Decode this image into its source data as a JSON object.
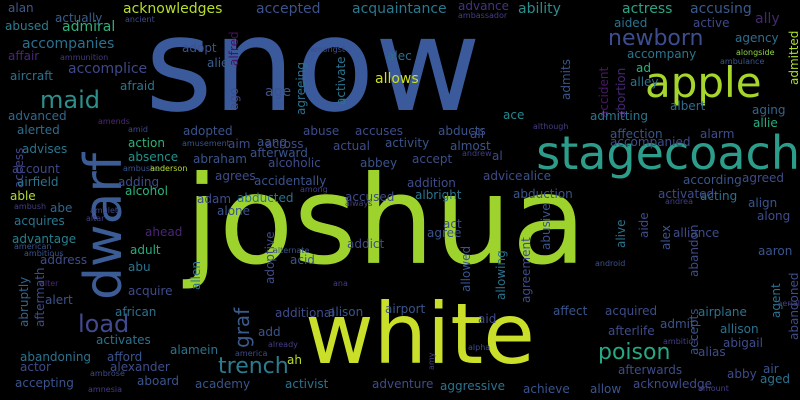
{
  "words": [
    {
      "text": "snow",
      "color": "#3a5a9c"
    },
    {
      "text": "joshua",
      "color": "#9ed32e"
    },
    {
      "text": "white",
      "color": "#c9df2a"
    },
    {
      "text": "stagecoach",
      "color": "#2c9c8b"
    },
    {
      "text": "apple",
      "color": "#a6d62b"
    },
    {
      "text": "dwarf",
      "color": "#3b5c95"
    },
    {
      "text": "maid",
      "color": "#2d8f8c"
    },
    {
      "text": "newborn",
      "color": "#3d4d8f"
    },
    {
      "text": "load",
      "color": "#414a8d"
    },
    {
      "text": "trench",
      "color": "#2c7b8e"
    },
    {
      "text": "poison",
      "color": "#26a884"
    },
    {
      "text": "graf",
      "color": "#3b5b8d"
    },
    {
      "text": "alan",
      "color": "#3f598b"
    },
    {
      "text": "abused",
      "color": "#2b7d8e"
    },
    {
      "text": "admiral",
      "color": "#30b07a"
    },
    {
      "text": "actually",
      "color": "#3a5e8d"
    },
    {
      "text": "acknowledges",
      "color": "#b7dd29"
    },
    {
      "text": "accepted",
      "color": "#3c528b"
    },
    {
      "text": "acquaintance",
      "color": "#2a798e"
    },
    {
      "text": "advance",
      "color": "#45337d"
    },
    {
      "text": "ability",
      "color": "#2d8c8d"
    },
    {
      "text": "actress",
      "color": "#2ca384"
    },
    {
      "text": "accusing",
      "color": "#3a5a8c"
    },
    {
      "text": "ally",
      "color": "#46296d"
    },
    {
      "text": "ancient",
      "color": "#3f4a89"
    },
    {
      "text": "accompanies",
      "color": "#2b718e"
    },
    {
      "text": "affair",
      "color": "#482878"
    },
    {
      "text": "ammunition",
      "color": "#44397f"
    },
    {
      "text": "accomplice",
      "color": "#3f4889"
    },
    {
      "text": "aircraft",
      "color": "#2c728e"
    },
    {
      "text": "afraid",
      "color": "#2b768e"
    },
    {
      "text": "adopt",
      "color": "#3c518b"
    },
    {
      "text": "alien",
      "color": "#3a5e8c"
    },
    {
      "text": "alfred",
      "color": "#471164"
    },
    {
      "text": "age",
      "color": "#3b528b"
    },
    {
      "text": "agreeing",
      "color": "#2d718e"
    },
    {
      "text": "activate",
      "color": "#2c738e"
    },
    {
      "text": "alec",
      "color": "#2d6f8e"
    },
    {
      "text": "allows",
      "color": "#cce01e"
    },
    {
      "text": "amongst",
      "color": "#3e4c8a"
    },
    {
      "text": "ambassador",
      "color": "#433e85"
    },
    {
      "text": "abortion",
      "color": "#482677"
    },
    {
      "text": "accident",
      "color": "#48186a"
    },
    {
      "text": "aided",
      "color": "#2c738e"
    },
    {
      "text": "active",
      "color": "#3e4a89"
    },
    {
      "text": "agency",
      "color": "#2e6e8e"
    },
    {
      "text": "accompany",
      "color": "#2b758e"
    },
    {
      "text": "admitted",
      "color": "#ade028"
    },
    {
      "text": "alongside",
      "color": "#8ed645"
    },
    {
      "text": "ambulance",
      "color": "#3a548c"
    },
    {
      "text": "ad",
      "color": "#2db27d"
    },
    {
      "text": "alley",
      "color": "#2c738e"
    },
    {
      "text": "albert",
      "color": "#2f6c8e"
    },
    {
      "text": "aging",
      "color": "#32648e"
    },
    {
      "text": "allie",
      "color": "#27ad81"
    },
    {
      "text": "admitting",
      "color": "#2b758e"
    },
    {
      "text": "admits",
      "color": "#3a548c"
    },
    {
      "text": "ace",
      "color": "#24878e"
    },
    {
      "text": "advanced",
      "color": "#31678e"
    },
    {
      "text": "amends",
      "color": "#4b2877"
    },
    {
      "text": "alerted",
      "color": "#2f6c8e"
    },
    {
      "text": "advises",
      "color": "#2b758e"
    },
    {
      "text": "access",
      "color": "#404588"
    },
    {
      "text": "account",
      "color": "#3f4889"
    },
    {
      "text": "airfield",
      "color": "#2c728e"
    },
    {
      "text": "able",
      "color": "#b5de2b"
    },
    {
      "text": "ambush",
      "color": "#433e85"
    },
    {
      "text": "abe",
      "color": "#32658e"
    },
    {
      "text": "acquires",
      "color": "#2b758e"
    },
    {
      "text": "amulet",
      "color": "#3f4a89"
    },
    {
      "text": "altar",
      "color": "#433e85"
    },
    {
      "text": "advantage",
      "color": "#27808e"
    },
    {
      "text": "american",
      "color": "#3a548c"
    },
    {
      "text": "ambitious",
      "color": "#3a548c"
    },
    {
      "text": "address",
      "color": "#3e4c8a"
    },
    {
      "text": "alter",
      "color": "#482878"
    },
    {
      "text": "abruptly",
      "color": "#32658e"
    },
    {
      "text": "aftermath",
      "color": "#3e4c8a"
    },
    {
      "text": "alert",
      "color": "#3a548c"
    },
    {
      "text": "abandoning",
      "color": "#2c728e"
    },
    {
      "text": "actor",
      "color": "#3f4a89"
    },
    {
      "text": "accepting",
      "color": "#3a548c"
    },
    {
      "text": "ambrose",
      "color": "#3e4c8a"
    },
    {
      "text": "amnesia",
      "color": "#433e85"
    },
    {
      "text": "amid",
      "color": "#3f4889"
    },
    {
      "text": "ambushed",
      "color": "#3a548c"
    },
    {
      "text": "amusement",
      "color": "#3a548c"
    },
    {
      "text": "anderson",
      "color": "#b8de29"
    },
    {
      "text": "action",
      "color": "#30b07a"
    },
    {
      "text": "absence",
      "color": "#21918c"
    },
    {
      "text": "adding",
      "color": "#3e4c8a"
    },
    {
      "text": "alcohol",
      "color": "#2db27d"
    },
    {
      "text": "ahead",
      "color": "#482677"
    },
    {
      "text": "adult",
      "color": "#26ad81"
    },
    {
      "text": "abu",
      "color": "#2c728e"
    },
    {
      "text": "acquire",
      "color": "#3e4c8a"
    },
    {
      "text": "african",
      "color": "#2c728e"
    },
    {
      "text": "afford",
      "color": "#3a548c"
    },
    {
      "text": "alexander",
      "color": "#3e4c8a"
    },
    {
      "text": "aboard",
      "color": "#3a548c"
    },
    {
      "text": "activates",
      "color": "#2c728e"
    },
    {
      "text": "alamein",
      "color": "#2c728e"
    },
    {
      "text": "america",
      "color": "#3e4c8a"
    },
    {
      "text": "academy",
      "color": "#3a548c"
    },
    {
      "text": "activist",
      "color": "#2c728e"
    },
    {
      "text": "add",
      "color": "#3a548c"
    },
    {
      "text": "ah",
      "color": "#bade28"
    },
    {
      "text": "already",
      "color": "#433e85"
    },
    {
      "text": "adventure",
      "color": "#3e4c8a"
    },
    {
      "text": "aggressive",
      "color": "#2c728e"
    },
    {
      "text": "achieve",
      "color": "#3a548c"
    },
    {
      "text": "allow",
      "color": "#3a548c"
    },
    {
      "text": "acknowledge",
      "color": "#3e4c8a"
    },
    {
      "text": "amount",
      "color": "#433e85"
    },
    {
      "text": "aged",
      "color": "#2c728e"
    },
    {
      "text": "abby",
      "color": "#3e4c8a"
    },
    {
      "text": "air",
      "color": "#3a548c"
    },
    {
      "text": "alias",
      "color": "#3e4c8a"
    },
    {
      "text": "abigail",
      "color": "#3e4c8a"
    },
    {
      "text": "allison",
      "color": "#2c728e"
    },
    {
      "text": "admit",
      "color": "#3a548c"
    },
    {
      "text": "airplane",
      "color": "#2c728e"
    },
    {
      "text": "afterlife",
      "color": "#3e4c8a"
    },
    {
      "text": "afterwards",
      "color": "#3e4c8a"
    },
    {
      "text": "accepts",
      "color": "#3a548c"
    },
    {
      "text": "ambition",
      "color": "#433e85"
    },
    {
      "text": "alpha",
      "color": "#3e4c8a"
    },
    {
      "text": "amy",
      "color": "#433e85"
    },
    {
      "text": "acquired",
      "color": "#3e4c8a"
    },
    {
      "text": "affect",
      "color": "#3a548c"
    },
    {
      "text": "aid",
      "color": "#3e4c8a"
    },
    {
      "text": "airport",
      "color": "#3a548c"
    },
    {
      "text": "alison",
      "color": "#3a548c"
    },
    {
      "text": "additional",
      "color": "#3e4c8a"
    },
    {
      "text": "ana",
      "color": "#433e85"
    },
    {
      "text": "alternate",
      "color": "#3a548c"
    },
    {
      "text": "allen",
      "color": "#2c728e"
    },
    {
      "text": "adoptive",
      "color": "#3e4c8a"
    },
    {
      "text": "acid",
      "color": "#3a548c"
    },
    {
      "text": "addict",
      "color": "#3e4c8a"
    },
    {
      "text": "allowed",
      "color": "#3a548c"
    },
    {
      "text": "allowing",
      "color": "#2c728e"
    },
    {
      "text": "agreement",
      "color": "#3e4c8a"
    },
    {
      "text": "abusive",
      "color": "#3a548c"
    },
    {
      "text": "alive",
      "color": "#2c728e"
    },
    {
      "text": "aide",
      "color": "#3e4c8a"
    },
    {
      "text": "alex",
      "color": "#3a548c"
    },
    {
      "text": "abandon",
      "color": "#3e4c8a"
    },
    {
      "text": "android",
      "color": "#3a548c"
    },
    {
      "text": "alliance",
      "color": "#3e4c8a"
    },
    {
      "text": "agent",
      "color": "#2c728e"
    },
    {
      "text": "abandoned",
      "color": "#3e4c8a"
    },
    {
      "text": "aerial",
      "color": "#433e85"
    },
    {
      "text": "aaron",
      "color": "#3a548c"
    },
    {
      "text": "along",
      "color": "#3e4c8a"
    },
    {
      "text": "align",
      "color": "#3a548c"
    },
    {
      "text": "acting",
      "color": "#2c728e"
    },
    {
      "text": "agreed",
      "color": "#3e4c8a"
    },
    {
      "text": "according",
      "color": "#3a548c"
    },
    {
      "text": "andrea",
      "color": "#433e85"
    },
    {
      "text": "activated",
      "color": "#3e4c8a"
    },
    {
      "text": "abduction",
      "color": "#3a548c"
    },
    {
      "text": "advice",
      "color": "#3e4c8a"
    },
    {
      "text": "alice",
      "color": "#3a548c"
    },
    {
      "text": "addition",
      "color": "#3e4c8a"
    },
    {
      "text": "albright",
      "color": "#2c728e"
    },
    {
      "text": "act",
      "color": "#3e4c8a"
    },
    {
      "text": "agree",
      "color": "#3a548c"
    },
    {
      "text": "accused",
      "color": "#3e4c8a"
    },
    {
      "text": "always",
      "color": "#433e85"
    },
    {
      "text": "accidentally",
      "color": "#3a548c"
    },
    {
      "text": "among",
      "color": "#433e85"
    },
    {
      "text": "adam",
      "color": "#3e4c8a"
    },
    {
      "text": "abducted",
      "color": "#2c728e"
    },
    {
      "text": "alone",
      "color": "#3a548c"
    },
    {
      "text": "agrees",
      "color": "#3e4c8a"
    },
    {
      "text": "abraham",
      "color": "#3a548c"
    },
    {
      "text": "alcoholic",
      "color": "#3e4c8a"
    },
    {
      "text": "abbey",
      "color": "#3a548c"
    },
    {
      "text": "accept",
      "color": "#3e4c8a"
    },
    {
      "text": "al",
      "color": "#3e4c8a"
    },
    {
      "text": "andrew",
      "color": "#433e85"
    },
    {
      "text": "almost",
      "color": "#3a548c"
    },
    {
      "text": "actual",
      "color": "#3e4c8a"
    },
    {
      "text": "activity",
      "color": "#3a548c"
    },
    {
      "text": "accuses",
      "color": "#3e4c8a"
    },
    {
      "text": "abducts",
      "color": "#3a548c"
    },
    {
      "text": "ali",
      "color": "#3e4c8a"
    },
    {
      "text": "abuse",
      "color": "#3e4c8a"
    },
    {
      "text": "aang",
      "color": "#3a548c"
    },
    {
      "text": "across",
      "color": "#3e4c8a"
    },
    {
      "text": "adopted",
      "color": "#3a548c"
    },
    {
      "text": "aim",
      "color": "#3e4c8a"
    },
    {
      "text": "afterward",
      "color": "#3a548c"
    },
    {
      "text": "ago",
      "color": "#3e4c8a"
    },
    {
      "text": "although",
      "color": "#433e85"
    },
    {
      "text": "accompanied",
      "color": "#3e4c8a"
    },
    {
      "text": "affection",
      "color": "#3a548c"
    },
    {
      "text": "alarm",
      "color": "#3e4c8a"
    }
  ]
}
